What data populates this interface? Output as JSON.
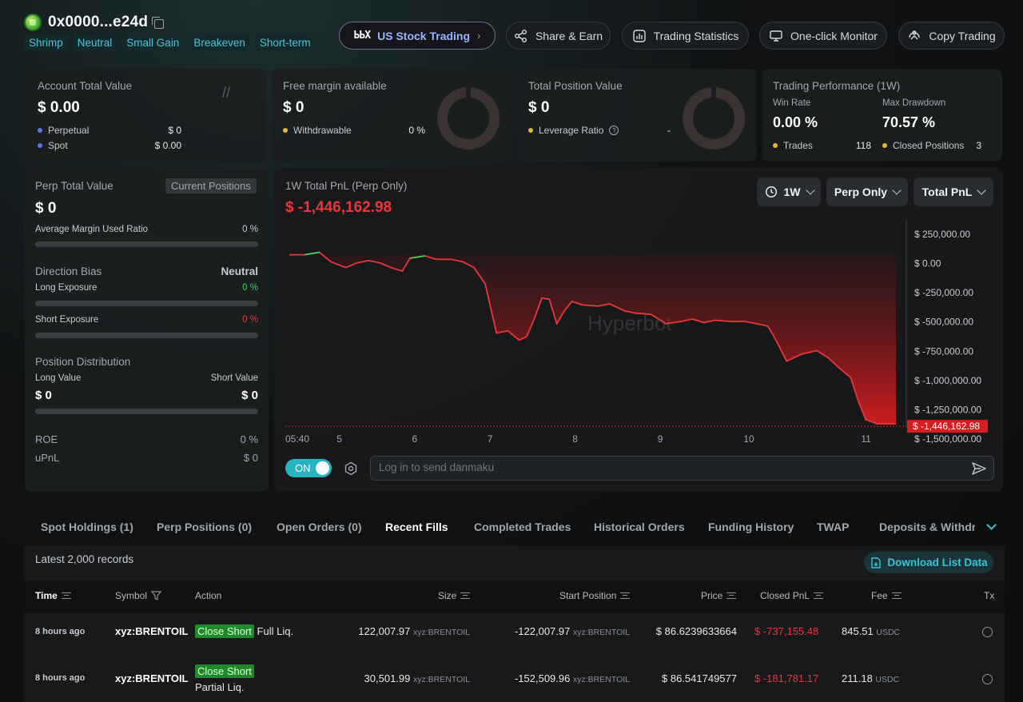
{
  "header": {
    "address": "0x0000...e24d",
    "tags": [
      "Shrimp",
      "Neutral",
      "Small Gain",
      "Breakeven",
      "Short-term"
    ],
    "buttons": {
      "stock_logo": "ЬЬХ",
      "stock_label": "US Stock Trading",
      "share": "Share & Earn",
      "stats": "Trading Statistics",
      "monitor": "One-click Monitor",
      "copy": "Copy Trading"
    }
  },
  "account": {
    "title": "Account Total Value",
    "value": "$ 0.00",
    "rows": [
      {
        "label": "Perpetual",
        "value": "$ 0",
        "color": "#5b78e0"
      },
      {
        "label": "Spot",
        "value": "$ 0.00",
        "color": "#5b78e0"
      }
    ]
  },
  "margin": {
    "title": "Free margin available",
    "value": "$ 0",
    "row_label": "Withdrawable",
    "row_value": "0 %"
  },
  "position": {
    "title": "Total Position Value",
    "value": "$ 0",
    "row_label": "Leverage Ratio",
    "row_value": "-"
  },
  "performance": {
    "title": "Trading Performance (1W)",
    "win_rate_label": "Win Rate",
    "win_rate": "0.00 %",
    "drawdown_label": "Max Drawdown",
    "drawdown": "70.57 %",
    "trades_label": "Trades",
    "trades": "118",
    "closed_label": "Closed Positions",
    "closed": "3"
  },
  "perp": {
    "title": "Perp Total Value",
    "current_btn": "Current Positions",
    "value": "$ 0",
    "margin_label": "Average Margin Used Ratio",
    "margin_value": "0 %",
    "bias_title": "Direction Bias",
    "bias_value": "Neutral",
    "long_label": "Long Exposure",
    "long_value": "0 %",
    "short_label": "Short Exposure",
    "short_value": "0 %",
    "dist_title": "Position Distribution",
    "long_val_label": "Long Value",
    "short_val_label": "Short Value",
    "long_val": "$ 0",
    "short_val": "$ 0",
    "roe_label": "ROE",
    "roe": "0 %",
    "upnl_label": "uPnL",
    "upnl": "$ 0"
  },
  "pnl": {
    "title": "1W Total PnL (Perp Only)",
    "value": "$ -1,446,162.98",
    "dropdowns": [
      "1W",
      "Perp Only",
      "Total PnL"
    ],
    "watermark": "Hyperbot",
    "current_label": "$ -1,446,162.98"
  },
  "chart_data": {
    "type": "area",
    "title": "1W Total PnL (Perp Only)",
    "x_tick_labels": [
      "05:40",
      "5",
      "6",
      "7",
      "8",
      "9",
      "10",
      "11"
    ],
    "x_tick_positions": [
      0,
      0.67,
      1.67,
      2.67,
      3.8,
      4.93,
      6.07,
      7.63
    ],
    "y_tick_labels": [
      "$ 250,000.00",
      "$ 0.00",
      "$ -250,000.00",
      "$ -500,000.00",
      "$ -750,000.00",
      "$ -1,000,000.00",
      "$ -1,250,000.00",
      "$ -1,500,000.00"
    ],
    "ylim": [
      -1500000,
      250000
    ],
    "current_value": -1446162.98,
    "series": [
      {
        "x": [
          0,
          0.2,
          0.4,
          0.55,
          0.75,
          0.9,
          1.05,
          1.2,
          1.35,
          1.5,
          1.6,
          1.8,
          1.95,
          2.15,
          2.3,
          2.45,
          2.6,
          2.75,
          2.9,
          3.05,
          3.15,
          3.25,
          3.35,
          3.45,
          3.55,
          3.65,
          3.75,
          3.9,
          4.1,
          4.25,
          4.45,
          4.6,
          4.8,
          5.0,
          5.2,
          5.35,
          5.5,
          5.65,
          5.85,
          6.05,
          6.2,
          6.35,
          6.45,
          6.6,
          6.8,
          7.0,
          7.15,
          7.3,
          7.45,
          7.55,
          7.65,
          7.8,
          7.95,
          8.05
        ],
        "y": [
          0,
          0,
          20000,
          -60000,
          -110000,
          -70000,
          -50000,
          -70000,
          -110000,
          -140000,
          -30000,
          -10000,
          -40000,
          -40000,
          -60000,
          -110000,
          -250000,
          -670000,
          -650000,
          -730000,
          -700000,
          -550000,
          -370000,
          -380000,
          -590000,
          -480000,
          -400000,
          -430000,
          -440000,
          -420000,
          -480000,
          -500000,
          -510000,
          -590000,
          -570000,
          -550000,
          -580000,
          -560000,
          -570000,
          -570000,
          -590000,
          -610000,
          -720000,
          -910000,
          -850000,
          -820000,
          -880000,
          -970000,
          -1050000,
          -1250000,
          -1410000,
          -1446000,
          -1446000,
          -1446000
        ],
        "green_segments": [
          [
            0.2,
            0.4
          ],
          [
            1.6,
            1.8
          ]
        ]
      }
    ]
  },
  "danmaku": {
    "toggle": "ON",
    "placeholder": "Log in to send danmaku"
  },
  "tabs": [
    "Spot Holdings (1)",
    "Perp Positions (0)",
    "Open Orders (0)",
    "Recent Fills",
    "Completed Trades",
    "Historical Orders",
    "Funding History",
    "TWAP",
    "Deposits & Withdraw"
  ],
  "table": {
    "records": "Latest 2,000 records",
    "download": "Download List Data",
    "headers": [
      "Time",
      "Symbol",
      "Action",
      "Size",
      "Start Position",
      "Price",
      "Closed PnL",
      "Fee",
      "Tx"
    ],
    "rows": [
      {
        "time": "8 hours ago",
        "symbol": "xyz:BRENTOIL",
        "action_badge": "Close Short",
        "action_text": "Full Liq.",
        "size": "122,007.97",
        "size_unit": "xyz:BRENTOIL",
        "start": "-122,007.97",
        "start_unit": "xyz:BRENTOIL",
        "price": "$ 86.6239633664",
        "pnl": "$ -737,155.48",
        "fee": "845.51",
        "fee_unit": "USDC"
      },
      {
        "time": "8 hours ago",
        "symbol": "xyz:BRENTOIL",
        "action_badge": "Close Short",
        "action_text": "Partial Liq.",
        "size": "30,501.99",
        "size_unit": "xyz:BRENTOIL",
        "start": "-152,509.96",
        "start_unit": "xyz:BRENTOIL",
        "price": "$ 86.541749577",
        "pnl": "$ -181,781.17",
        "fee": "211.18",
        "fee_unit": "USDC"
      }
    ]
  }
}
